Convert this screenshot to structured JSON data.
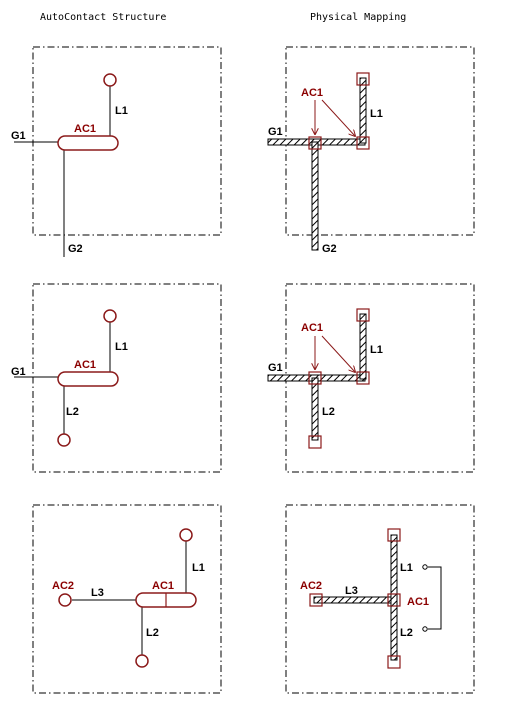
{
  "titles": {
    "left": "AutoContact Structure",
    "right": "Physical Mapping"
  },
  "labels": {
    "ac1": "AC1",
    "ac2": "AC2",
    "g1": "G1",
    "g2": "G2",
    "l1": "L1",
    "l2": "L2",
    "l3": "L3"
  },
  "colors": {
    "contact": "#8b1a1a",
    "wire": "#000000"
  }
}
